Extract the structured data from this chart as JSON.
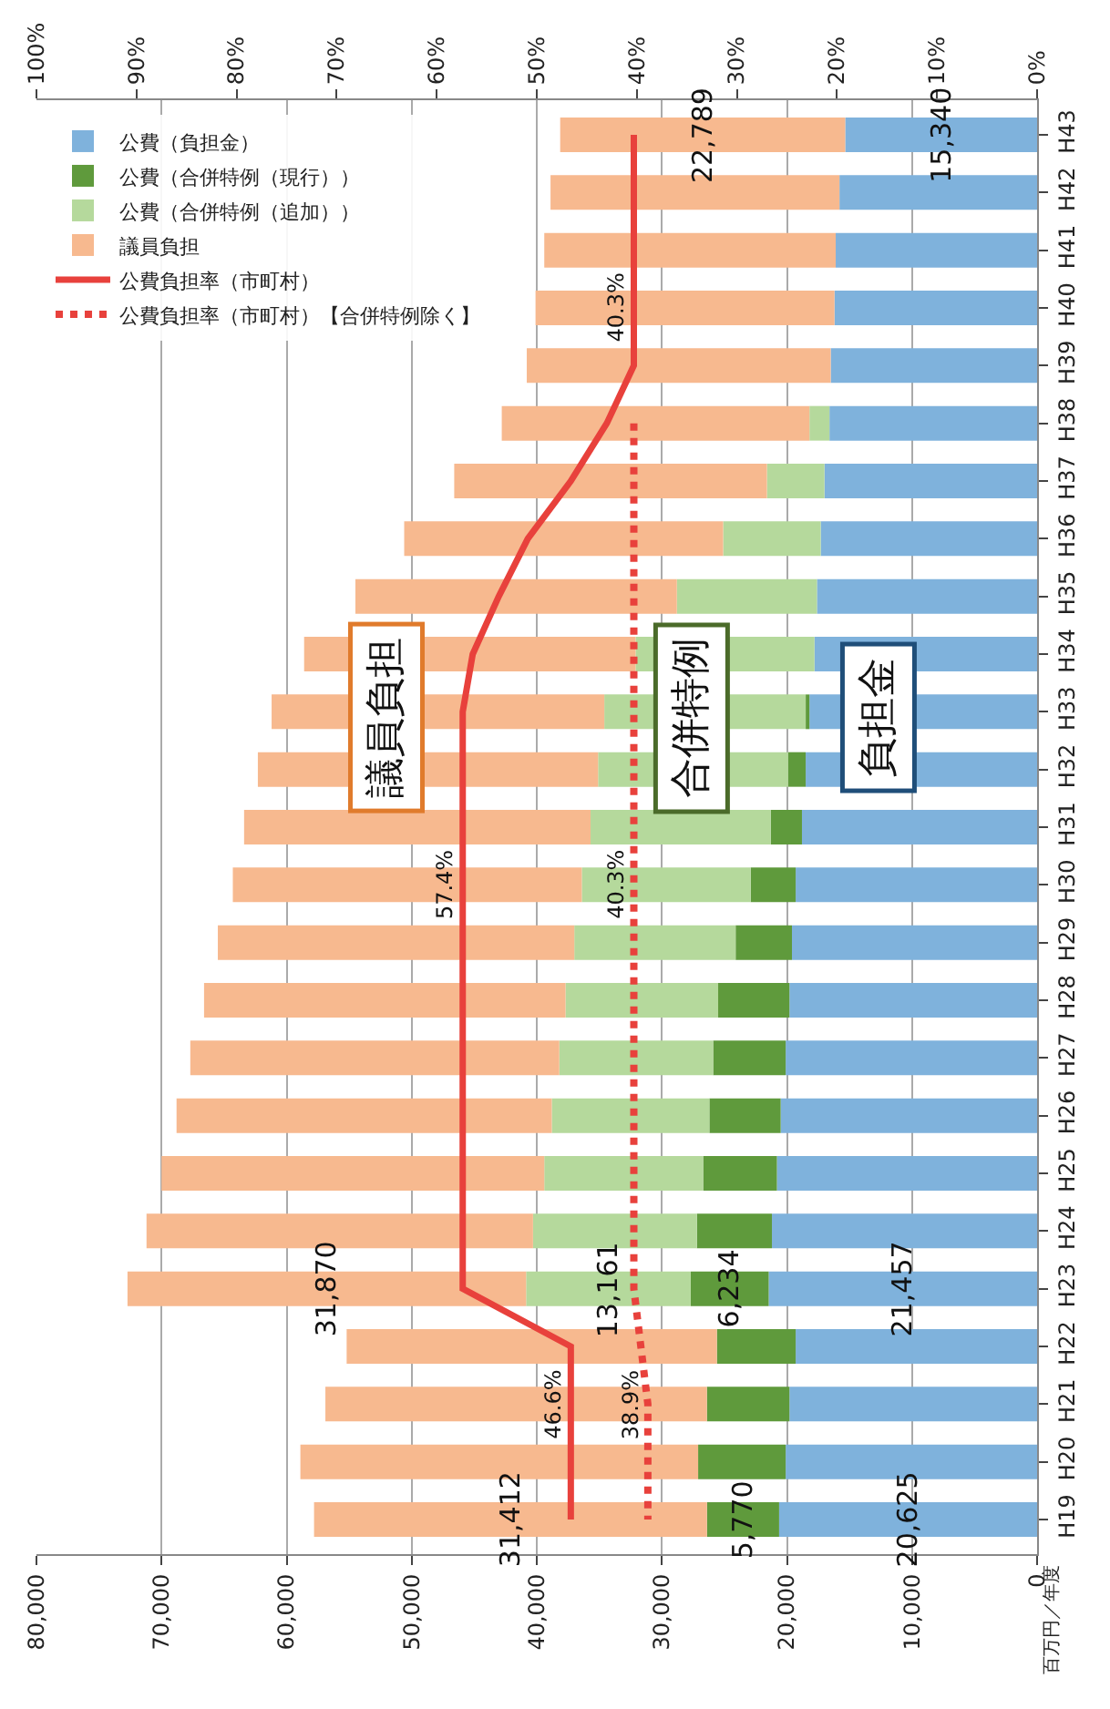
{
  "chart_data": {
    "type": "bar",
    "orientation": "horizontal",
    "stacked": true,
    "categories": [
      "H43",
      "H42",
      "H41",
      "H40",
      "H39",
      "H38",
      "H37",
      "H36",
      "H35",
      "H34",
      "H33",
      "H32",
      "H31",
      "H30",
      "H29",
      "H28",
      "H27",
      "H26",
      "H25",
      "H24",
      "H23",
      "H22",
      "H21",
      "H20",
      "H19"
    ],
    "xlim": [
      80000,
      0
    ],
    "xticks": [
      {
        "value": 0,
        "label": "0"
      },
      {
        "value": 10000,
        "label": "10,000"
      },
      {
        "value": 20000,
        "label": "20,000"
      },
      {
        "value": 30000,
        "label": "30,000"
      },
      {
        "value": 40000,
        "label": "40,000"
      },
      {
        "value": 50000,
        "label": "50,000"
      },
      {
        "value": 60000,
        "label": "60,000"
      },
      {
        "value": 70000,
        "label": "70,000"
      },
      {
        "value": 80000,
        "label": "80,000"
      }
    ],
    "x2lim": [
      100,
      0
    ],
    "x2ticks": [
      {
        "value": 0,
        "label": "0%"
      },
      {
        "value": 10,
        "label": "10%"
      },
      {
        "value": 20,
        "label": "20%"
      },
      {
        "value": 30,
        "label": "30%"
      },
      {
        "value": 40,
        "label": "40%"
      },
      {
        "value": 50,
        "label": "50%"
      },
      {
        "value": 60,
        "label": "60%"
      },
      {
        "value": 70,
        "label": "70%"
      },
      {
        "value": 80,
        "label": "80%"
      },
      {
        "value": 90,
        "label": "90%"
      },
      {
        "value": 100,
        "label": "100%"
      }
    ],
    "grid": "x",
    "legend": "top left",
    "series": [
      {
        "name": "公費（負担金）",
        "color": "#7fb2dc",
        "values": [
          15340,
          15800,
          16100,
          16200,
          16500,
          16600,
          17000,
          17300,
          17600,
          17800,
          18200,
          18500,
          18800,
          19300,
          19600,
          19800,
          20100,
          20500,
          20800,
          21200,
          21457,
          19300,
          19800,
          20100,
          20625
        ],
        "value_labels": [
          "15,340",
          null,
          null,
          null,
          null,
          null,
          null,
          null,
          null,
          null,
          null,
          null,
          null,
          null,
          null,
          null,
          null,
          null,
          null,
          null,
          "21,457",
          null,
          null,
          null,
          "20,625"
        ]
      },
      {
        "name": "公費（合併特例（現行））",
        "color": "#5f9a3c",
        "values": [
          null,
          null,
          null,
          null,
          null,
          null,
          null,
          null,
          null,
          null,
          300,
          1400,
          2500,
          3600,
          4500,
          5700,
          5800,
          5700,
          5900,
          6000,
          6234,
          6300,
          6600,
          7000,
          5770
        ],
        "value_labels": [
          null,
          null,
          null,
          null,
          null,
          null,
          null,
          null,
          null,
          null,
          null,
          null,
          null,
          null,
          null,
          null,
          null,
          null,
          null,
          null,
          "6,234",
          null,
          null,
          null,
          "5,770"
        ]
      },
      {
        "name": "公費（合併特例（追加））",
        "color": "#b5d99c",
        "values": [
          null,
          null,
          null,
          null,
          null,
          1600,
          4600,
          7800,
          11200,
          14300,
          16100,
          15200,
          14400,
          13500,
          12900,
          12200,
          12300,
          12600,
          12700,
          13100,
          13161,
          null,
          null,
          null,
          null
        ],
        "value_labels": [
          null,
          null,
          null,
          null,
          null,
          null,
          null,
          null,
          null,
          null,
          null,
          null,
          null,
          null,
          null,
          null,
          null,
          null,
          null,
          null,
          "13,161",
          null,
          null,
          null,
          null
        ]
      },
      {
        "name": "議員負担",
        "color": "#f7b98f",
        "values": [
          22789,
          23100,
          23300,
          23900,
          24300,
          24600,
          25000,
          25500,
          25700,
          26500,
          26600,
          27200,
          27700,
          27900,
          28500,
          28900,
          29500,
          30000,
          30600,
          30900,
          31870,
          29600,
          30500,
          31800,
          31412
        ],
        "value_labels": [
          "22,789",
          null,
          null,
          null,
          null,
          null,
          null,
          null,
          null,
          null,
          null,
          null,
          null,
          null,
          null,
          null,
          null,
          null,
          null,
          null,
          "31,870",
          null,
          null,
          null,
          "31,412"
        ]
      },
      {
        "name": "公費負担率（市町村）",
        "type": "line",
        "axis": "x2",
        "color": "#e8413c",
        "line_style": "solid",
        "marker": "none",
        "values": [
          40.3,
          40.3,
          40.3,
          40.3,
          40.3,
          43.0,
          46.6,
          50.9,
          53.8,
          56.4,
          57.4,
          57.4,
          57.4,
          57.4,
          57.4,
          57.4,
          57.4,
          57.4,
          57.4,
          57.4,
          57.4,
          46.6,
          46.6,
          46.6,
          46.6
        ]
      },
      {
        "name": "公費負担率（市町村）【合併特例除く】",
        "type": "line",
        "axis": "x2",
        "color": "#e8413c",
        "line_style": "dotted",
        "marker": "none",
        "values": [
          null,
          null,
          null,
          null,
          null,
          40.3,
          40.3,
          40.3,
          40.3,
          40.3,
          40.3,
          40.3,
          40.3,
          40.3,
          40.3,
          40.3,
          40.3,
          40.3,
          40.3,
          40.3,
          40.3,
          39.6,
          38.9,
          38.9,
          38.9
        ]
      }
    ],
    "annotations": [
      "議員負担",
      "合併特例",
      "負担金",
      "百万円／年度",
      "46.6%",
      "38.9%",
      "57.4%",
      "40.3%",
      "40.3%"
    ]
  }
}
